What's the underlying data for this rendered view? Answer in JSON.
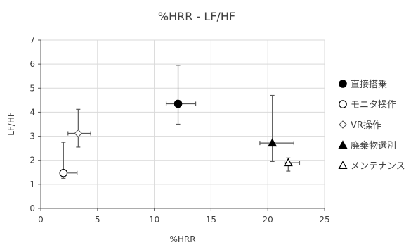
{
  "chart_data": {
    "type": "scatter",
    "title": "%HRR - LF/HF",
    "xlabel": "%HRR",
    "ylabel": "LF/HF",
    "xlim": [
      0,
      25
    ],
    "ylim": [
      0,
      7
    ],
    "x_ticks": [
      "0",
      "5",
      "10",
      "15",
      "20",
      "25"
    ],
    "y_ticks": [
      "0",
      "1",
      "2",
      "3",
      "4",
      "5",
      "6",
      "7"
    ],
    "grid": true,
    "legend_position": "right",
    "series": [
      {
        "name": "直接搭乗",
        "marker": "circle-filled",
        "x": 12.1,
        "y": 4.35,
        "x_err": [
          1.05,
          1.55
        ],
        "y_err": [
          0.85,
          1.6
        ]
      },
      {
        "name": "モニタ操作",
        "marker": "circle-open",
        "x": 2.0,
        "y": 1.47,
        "x_err": [
          0.0,
          1.2
        ],
        "y_err": [
          0.22,
          1.28
        ]
      },
      {
        "name": "VR操作",
        "marker": "diamond-open",
        "x": 3.3,
        "y": 3.12,
        "x_err": [
          0.9,
          1.1
        ],
        "y_err": [
          0.57,
          1.0
        ]
      },
      {
        "name": "廃棄物選別",
        "marker": "triangle-filled",
        "x": 20.4,
        "y": 2.72,
        "x_err": [
          1.1,
          1.9
        ],
        "y_err": [
          0.77,
          1.98
        ]
      },
      {
        "name": "メンテナンス",
        "marker": "triangle-open",
        "x": 21.8,
        "y": 1.9,
        "x_err": [
          0.3,
          1.0
        ],
        "y_err": [
          0.35,
          0.2
        ]
      }
    ]
  }
}
